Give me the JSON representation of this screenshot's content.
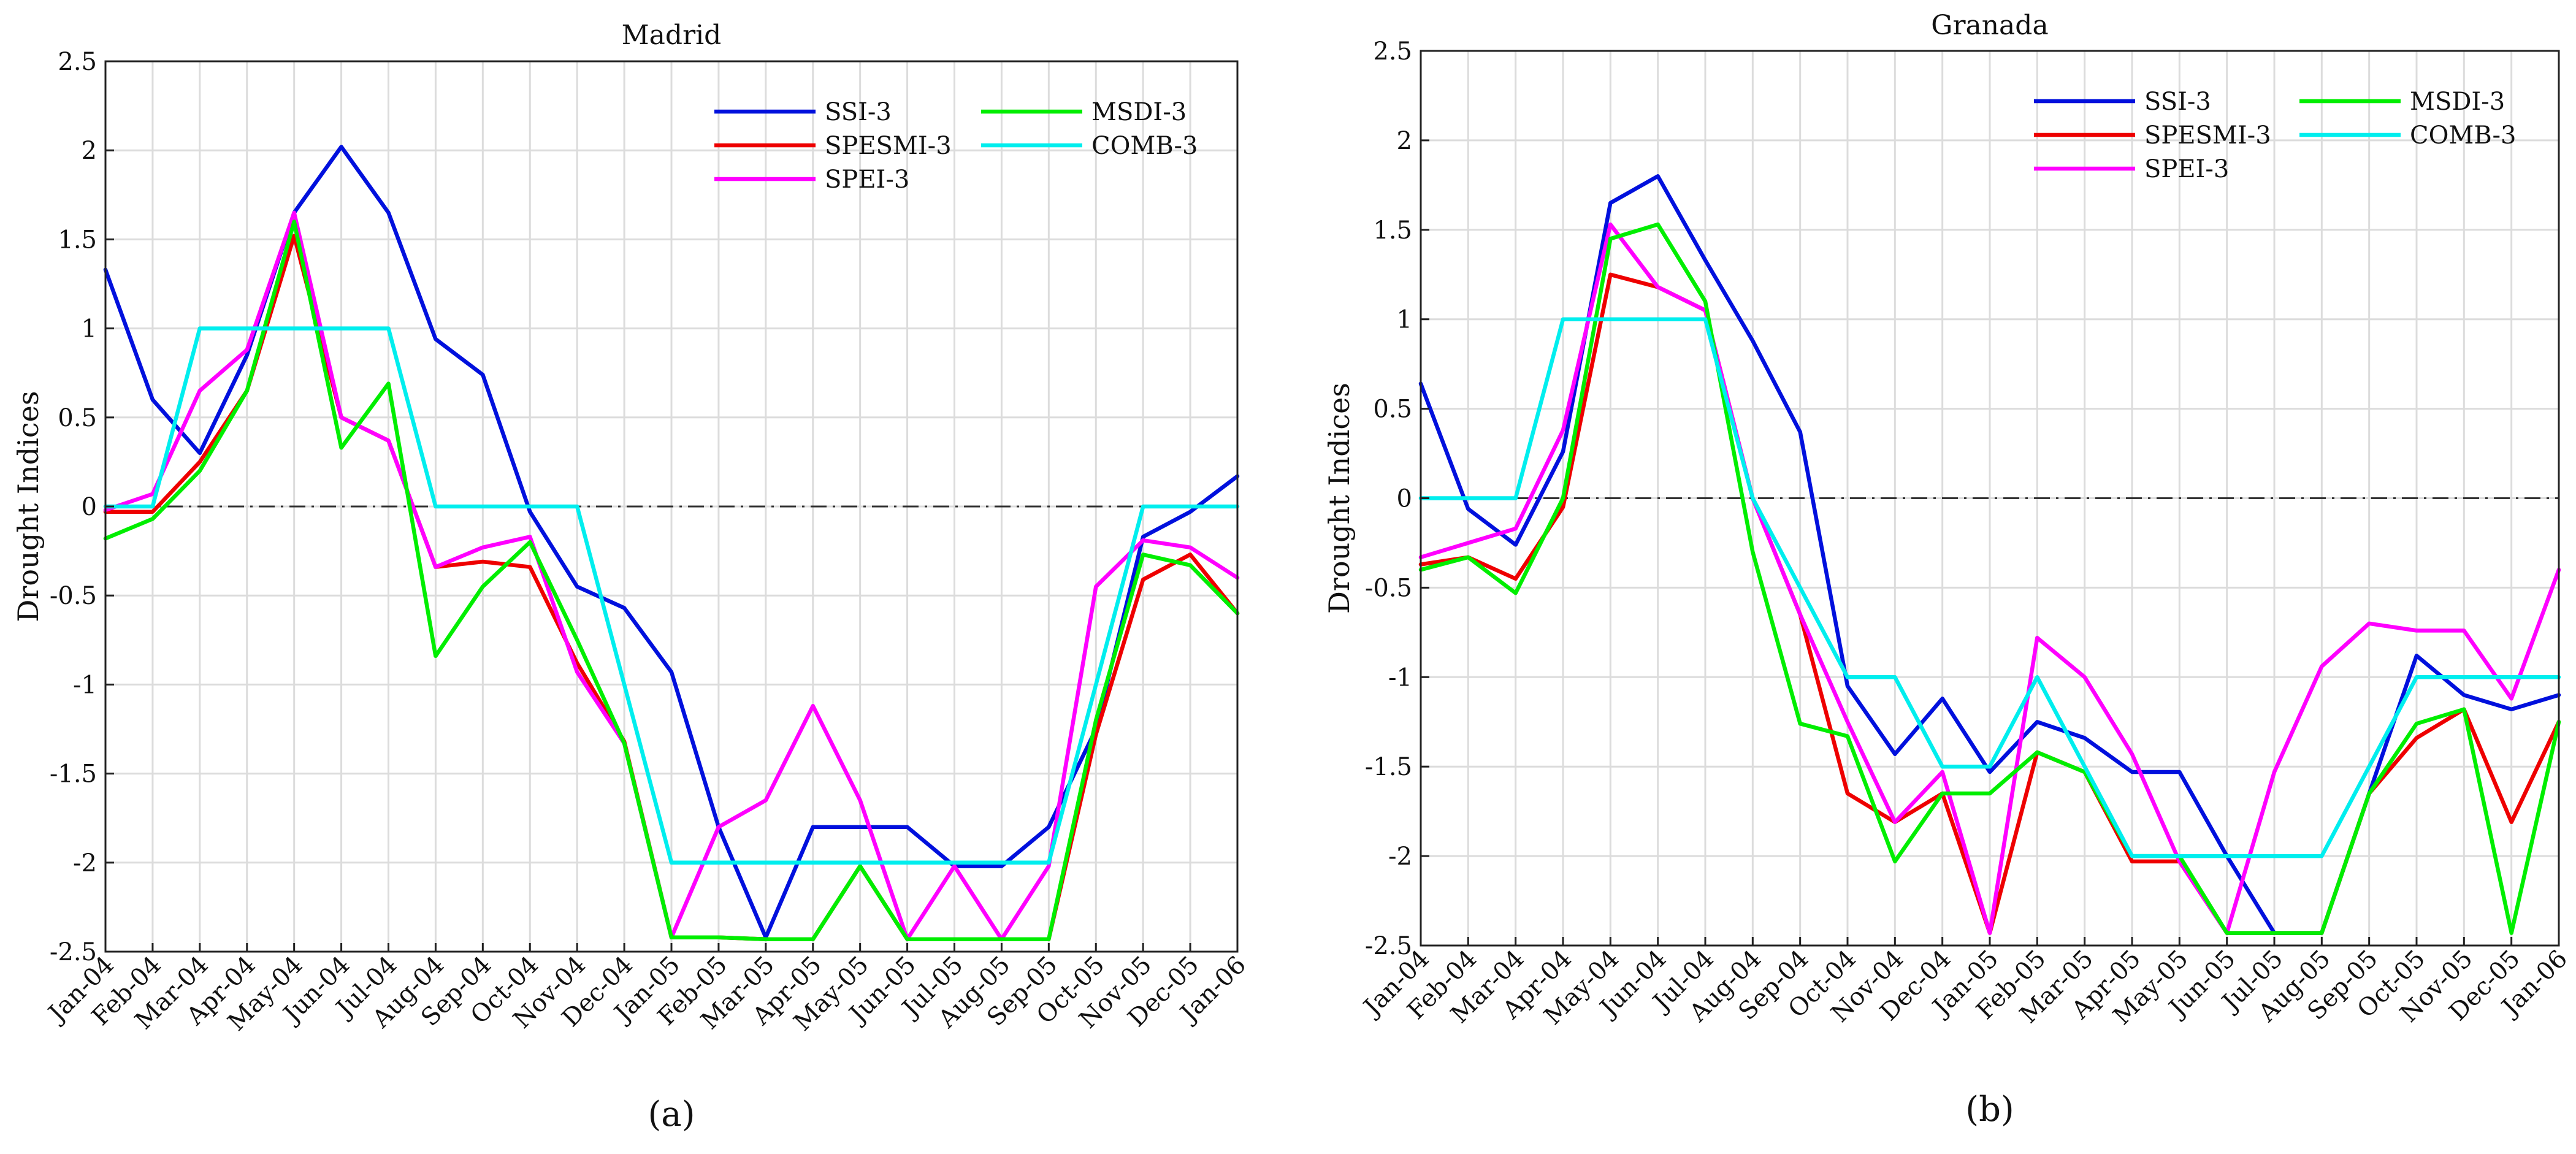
{
  "figure": {
    "background": "#ffffff"
  },
  "chart_data": [
    {
      "type": "line",
      "title": "Madrid",
      "ylabel": "Drought Indices",
      "xlabel": "",
      "panel_caption": "(a)",
      "ylim": [
        -2.5,
        2.5
      ],
      "yticks": [
        -2.5,
        -2,
        -1.5,
        -1,
        -0.5,
        0,
        0.5,
        1,
        1.5,
        2,
        2.5
      ],
      "ytick_labels": [
        "-2.5",
        "-2",
        "-1.5",
        "-1",
        "-0.5",
        "0",
        "0.5",
        "1",
        "1.5",
        "2",
        "2.5"
      ],
      "grid": true,
      "reference_line": 0,
      "legend_position": "top-right",
      "categories": [
        "Jan-04",
        "Feb-04",
        "Mar-04",
        "Apr-04",
        "May-04",
        "Jun-04",
        "Jul-04",
        "Aug-04",
        "Sep-04",
        "Oct-04",
        "Nov-04",
        "Dec-04",
        "Jan-05",
        "Feb-05",
        "Mar-05",
        "Apr-05",
        "May-05",
        "Jun-05",
        "Jul-05",
        "Aug-05",
        "Sep-05",
        "Oct-05",
        "Nov-05",
        "Dec-05",
        "Jan-06"
      ],
      "series": [
        {
          "name": "SSI-3",
          "color": "#0010dd",
          "values": [
            1.33,
            0.6,
            0.3,
            0.85,
            1.65,
            2.02,
            1.65,
            0.94,
            0.74,
            -0.03,
            -0.45,
            -0.57,
            -0.93,
            -1.8,
            -2.42,
            -1.8,
            -1.8,
            -1.8,
            -2.02,
            -2.02,
            -1.8,
            -1.25,
            -0.17,
            -0.03,
            0.17
          ]
        },
        {
          "name": "SPESMI-3",
          "color": "#ee0000",
          "values": [
            -0.03,
            -0.03,
            0.25,
            0.65,
            1.52,
            0.5,
            0.37,
            -0.34,
            -0.31,
            -0.34,
            -0.88,
            -1.32,
            -2.42,
            -2.42,
            -2.43,
            -2.43,
            -2.02,
            -2.43,
            -2.43,
            -2.43,
            -2.43,
            -1.28,
            -0.41,
            -0.27,
            -0.6
          ]
        },
        {
          "name": "SPEI-3",
          "color": "#ff00ff",
          "values": [
            -0.02,
            0.07,
            0.65,
            0.88,
            1.65,
            0.5,
            0.37,
            -0.34,
            -0.23,
            -0.17,
            -0.93,
            -1.33,
            -2.42,
            -1.8,
            -1.65,
            -1.12,
            -1.65,
            -2.43,
            -2.02,
            -2.43,
            -2.02,
            -0.45,
            -0.19,
            -0.23,
            -0.4
          ]
        },
        {
          "name": "MSDI-3",
          "color": "#00ee00",
          "values": [
            -0.18,
            -0.07,
            0.2,
            0.65,
            1.6,
            0.33,
            0.69,
            -0.84,
            -0.45,
            -0.2,
            -0.75,
            -1.33,
            -2.42,
            -2.42,
            -2.43,
            -2.43,
            -2.02,
            -2.43,
            -2.43,
            -2.43,
            -2.43,
            -1.2,
            -0.27,
            -0.33,
            -0.6
          ]
        },
        {
          "name": "COMB-3",
          "color": "#00eeee",
          "values": [
            0,
            0,
            1,
            1,
            1,
            1,
            1,
            0,
            0,
            0,
            0,
            -1,
            -2,
            -2,
            -2,
            -2,
            -2,
            -2,
            -2,
            -2,
            -2,
            -1,
            0,
            0,
            0
          ]
        }
      ]
    },
    {
      "type": "line",
      "title": "Granada",
      "ylabel": "Drought Indices",
      "xlabel": "",
      "panel_caption": "(b)",
      "ylim": [
        -2.5,
        2.5
      ],
      "yticks": [
        -2.5,
        -2,
        -1.5,
        -1,
        -0.5,
        0,
        0.5,
        1,
        1.5,
        2,
        2.5
      ],
      "ytick_labels": [
        "-2.5",
        "-2",
        "-1.5",
        "-1",
        "-0.5",
        "0",
        "0.5",
        "1",
        "1.5",
        "2",
        "2.5"
      ],
      "grid": true,
      "reference_line": 0,
      "legend_position": "top-right",
      "categories": [
        "Jan-04",
        "Feb-04",
        "Mar-04",
        "Apr-04",
        "May-04",
        "Jun-04",
        "Jul-04",
        "Aug-04",
        "Sep-04",
        "Oct-04",
        "Nov-04",
        "Dec-04",
        "Jan-05",
        "Feb-05",
        "Mar-05",
        "Apr-05",
        "May-05",
        "Jun-05",
        "Jul-05",
        "Aug-05",
        "Sep-05",
        "Oct-05",
        "Nov-05",
        "Dec-05",
        "Jan-06"
      ],
      "series": [
        {
          "name": "SSI-3",
          "color": "#0010dd",
          "values": [
            0.64,
            -0.06,
            -0.26,
            0.26,
            1.65,
            1.8,
            1.33,
            0.88,
            0.37,
            -1.05,
            -1.43,
            -1.12,
            -1.53,
            -1.25,
            -1.34,
            -1.53,
            -1.53,
            -2.0,
            -2.43,
            -2.43,
            -1.65,
            -0.88,
            -1.1,
            -1.18,
            -1.1
          ]
        },
        {
          "name": "SPESMI-3",
          "color": "#ee0000",
          "values": [
            -0.37,
            -0.33,
            -0.45,
            -0.05,
            1.25,
            1.18,
            1.05,
            0.0,
            -0.65,
            -1.65,
            -1.81,
            -1.65,
            -2.43,
            -1.42,
            -1.53,
            -2.03,
            -2.03,
            -2.43,
            -2.43,
            -2.43,
            -1.65,
            -1.34,
            -1.18,
            -1.81,
            -1.25
          ]
        },
        {
          "name": "SPEI-3",
          "color": "#ff00ff",
          "values": [
            -0.33,
            -0.25,
            -0.17,
            0.38,
            1.53,
            1.18,
            1.05,
            0.0,
            -0.65,
            -1.25,
            -1.81,
            -1.53,
            -2.43,
            -0.78,
            -1.0,
            -1.43,
            -2.03,
            -2.43,
            -1.53,
            -0.94,
            -0.7,
            -0.74,
            -0.74,
            -1.12,
            -0.4
          ]
        },
        {
          "name": "MSDI-3",
          "color": "#00ee00",
          "values": [
            -0.4,
            -0.33,
            -0.53,
            0.0,
            1.45,
            1.53,
            1.1,
            -0.3,
            -1.26,
            -1.33,
            -2.03,
            -1.65,
            -1.65,
            -1.42,
            -1.53,
            -2.0,
            -2.0,
            -2.43,
            -2.43,
            -2.43,
            -1.65,
            -1.26,
            -1.18,
            -2.43,
            -1.25
          ]
        },
        {
          "name": "COMB-3",
          "color": "#00eeee",
          "values": [
            0,
            0,
            0,
            1,
            1,
            1,
            1,
            0,
            -0.5,
            -1,
            -1,
            -1.5,
            -1.5,
            -1,
            -1.5,
            -2,
            -2,
            -2,
            -2,
            -2,
            -1.5,
            -1,
            -1,
            -1,
            -1
          ]
        }
      ]
    }
  ]
}
